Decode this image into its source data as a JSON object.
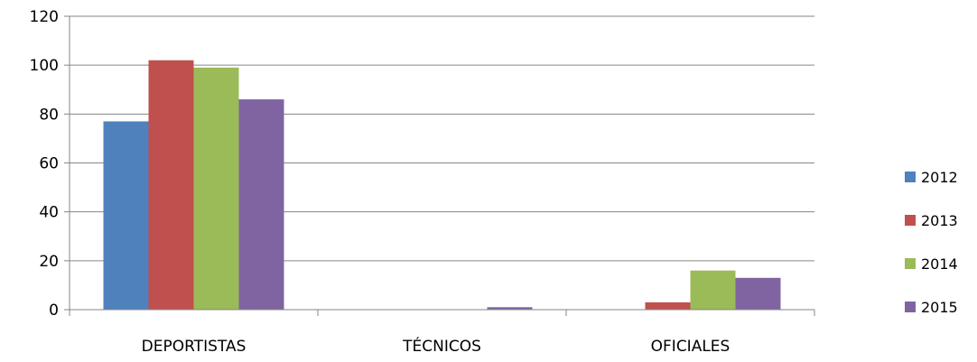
{
  "chart_data": {
    "type": "bar",
    "categories": [
      "DEPORTISTAS",
      "TÉCNICOS",
      "OFICIALES"
    ],
    "series": [
      {
        "name": "2012",
        "color": "#4F81BD",
        "values": [
          77,
          0,
          0
        ]
      },
      {
        "name": "2013",
        "color": "#C0504D",
        "values": [
          102,
          0,
          3
        ]
      },
      {
        "name": "2014",
        "color": "#9BBB59",
        "values": [
          99,
          0,
          16
        ]
      },
      {
        "name": "2015",
        "color": "#8064A2",
        "values": [
          86,
          1,
          13
        ]
      }
    ],
    "yticks": [
      0,
      20,
      40,
      60,
      80,
      100,
      120
    ],
    "ylim": [
      0,
      120
    ],
    "grid": true,
    "legend_position": "right"
  }
}
